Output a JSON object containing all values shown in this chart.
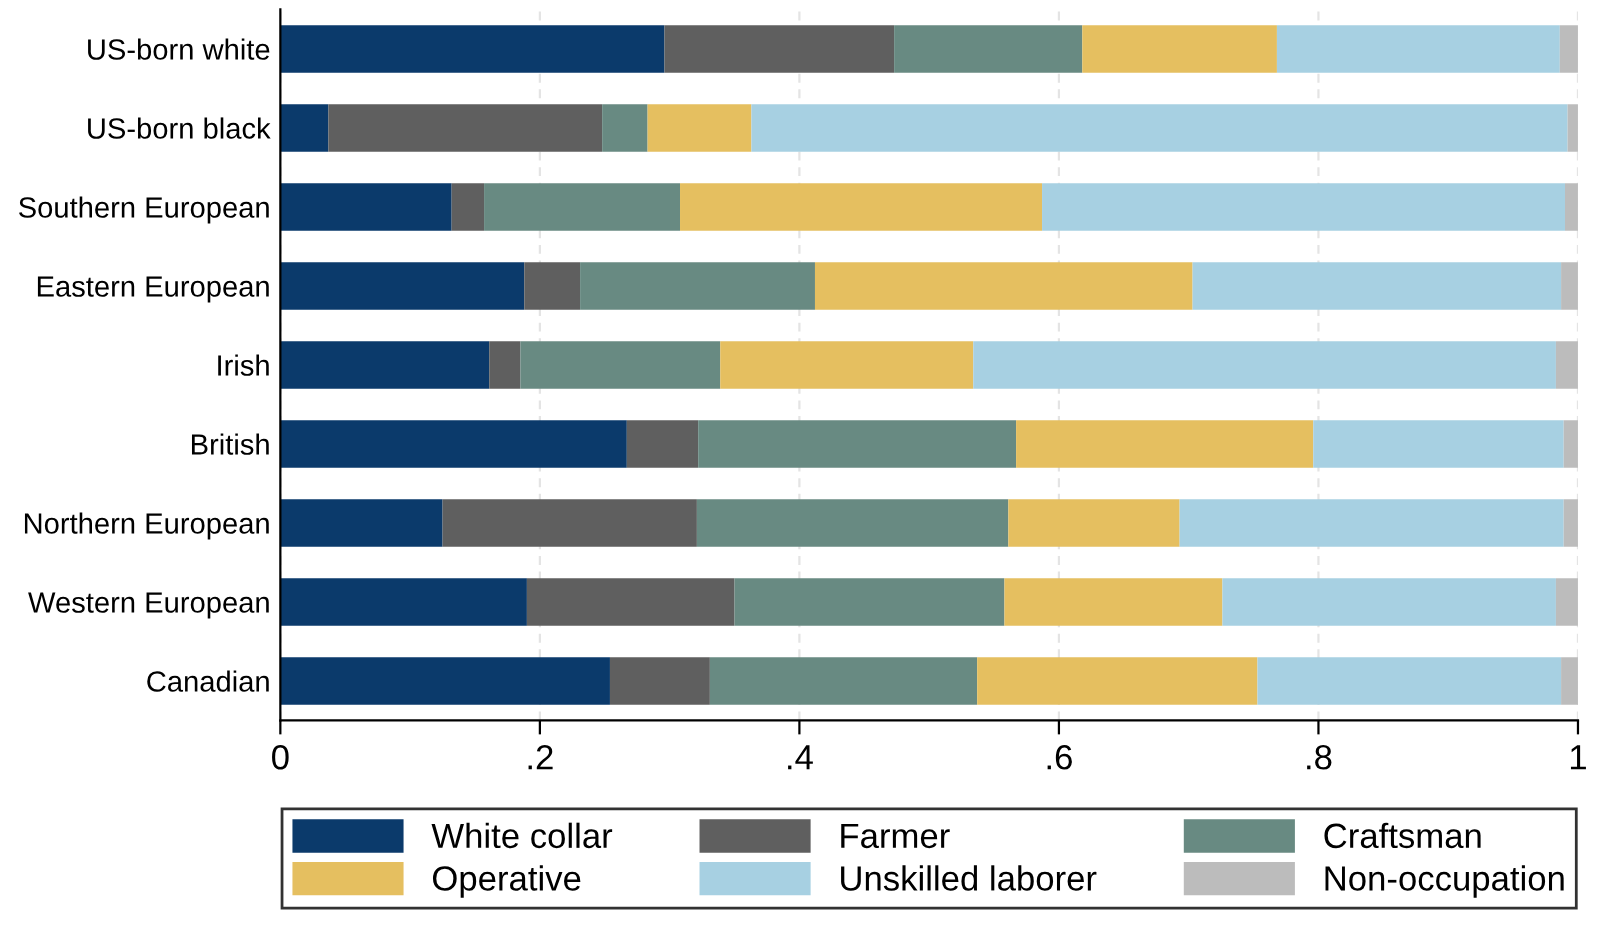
{
  "chart_data": {
    "type": "bar",
    "orientation": "horizontal",
    "stacked": true,
    "categories": [
      "US-born white",
      "US-born black",
      "Southern European",
      "Eastern European",
      "Irish",
      "British",
      "Northern European",
      "Western European",
      "Canadian"
    ],
    "series": [
      {
        "name": "White collar",
        "color": "#0b3a6b",
        "values": [
          0.296,
          0.037,
          0.132,
          0.188,
          0.161,
          0.267,
          0.125,
          0.19,
          0.254
        ]
      },
      {
        "name": "Farmer",
        "color": "#5f5f5f",
        "values": [
          0.177,
          0.211,
          0.025,
          0.043,
          0.024,
          0.055,
          0.196,
          0.16,
          0.077
        ]
      },
      {
        "name": "Craftsman",
        "color": "#688a82",
        "values": [
          0.145,
          0.035,
          0.151,
          0.181,
          0.154,
          0.245,
          0.24,
          0.208,
          0.206
        ]
      },
      {
        "name": "Operative",
        "color": "#e5bf60",
        "values": [
          0.15,
          0.08,
          0.279,
          0.291,
          0.195,
          0.229,
          0.132,
          0.168,
          0.216
        ]
      },
      {
        "name": "Unskilled laborer",
        "color": "#a7d0e2",
        "values": [
          0.218,
          0.629,
          0.403,
          0.284,
          0.449,
          0.193,
          0.296,
          0.257,
          0.234
        ]
      },
      {
        "name": "Non-occupation",
        "color": "#bcbcbc",
        "values": [
          0.014,
          0.008,
          0.01,
          0.013,
          0.017,
          0.011,
          0.011,
          0.017,
          0.013
        ]
      }
    ],
    "xlim": [
      0,
      1
    ],
    "xticks": [
      0,
      {
        "value": 0.2,
        "label": ".2"
      },
      {
        "value": 0.4,
        "label": ".4"
      },
      {
        "value": 0.6,
        "label": ".6"
      },
      {
        "value": 0.8,
        "label": ".8"
      },
      1
    ],
    "grid": "x",
    "legend": "bottom"
  }
}
